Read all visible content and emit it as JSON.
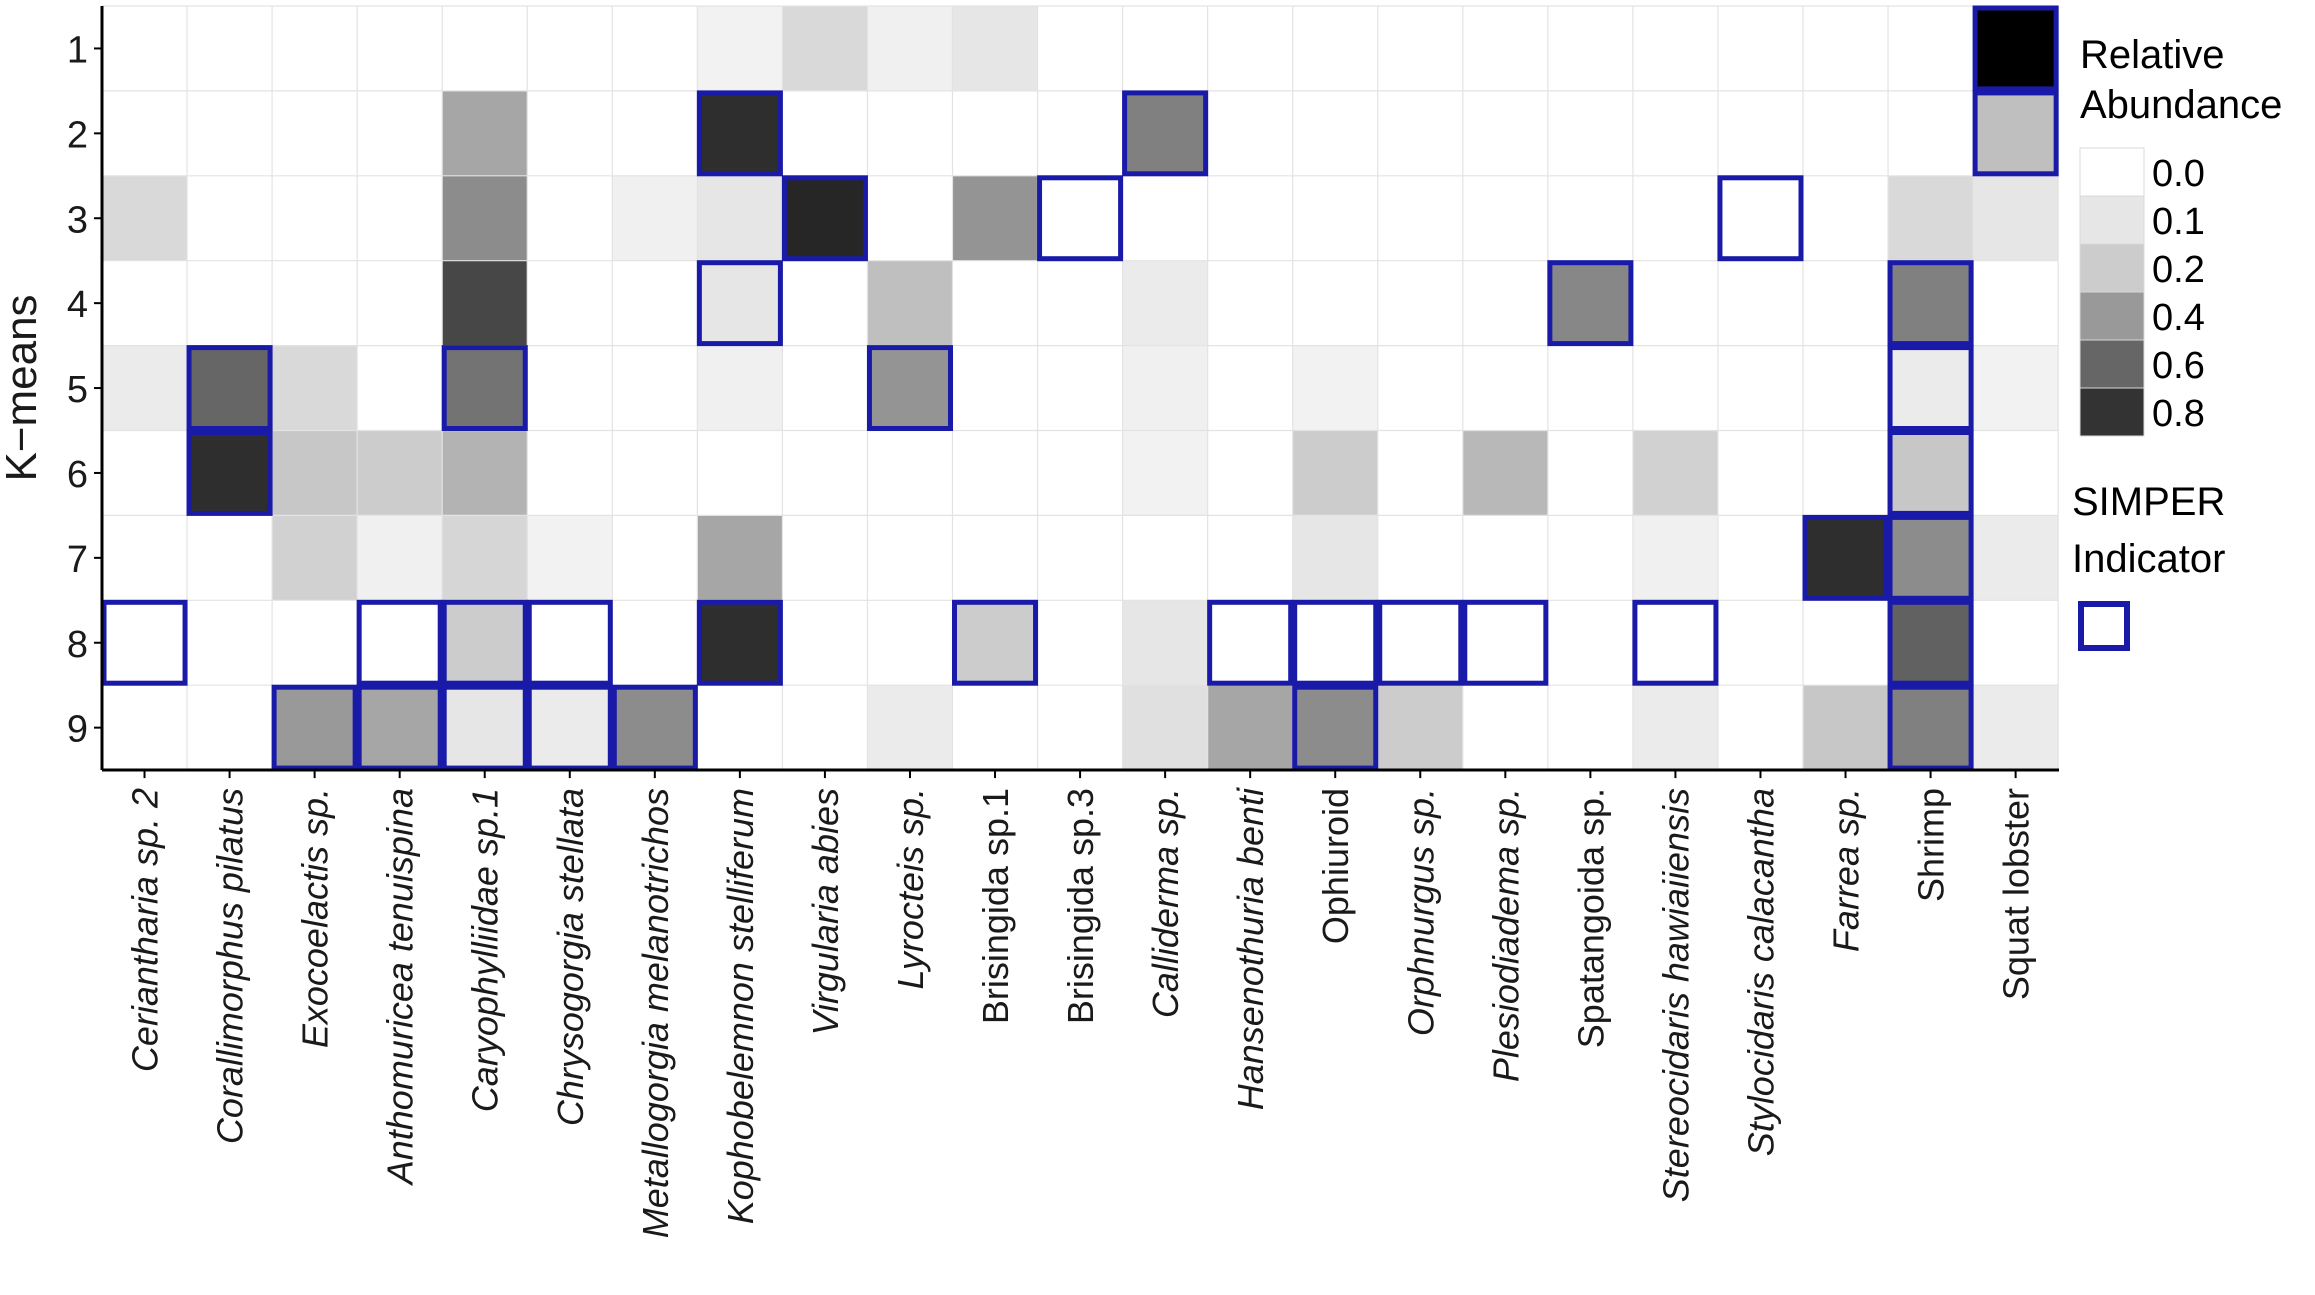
{
  "chart_data": {
    "type": "heatmap",
    "ylabel": "K−means",
    "rows": [
      "1",
      "2",
      "3",
      "4",
      "5",
      "6",
      "7",
      "8",
      "9"
    ],
    "columns": [
      {
        "name": "Ceriantharia sp. 2",
        "italic": true
      },
      {
        "name": "Corallimorphus pilatus",
        "italic": true
      },
      {
        "name": "Exocoelactis sp.",
        "italic": true
      },
      {
        "name": "Anthomuricea tenuispina",
        "italic": true
      },
      {
        "name": "Caryophylliidae sp.1",
        "italic": true
      },
      {
        "name": "Chrysogorgia stellata",
        "italic": true
      },
      {
        "name": "Metallogorgia melanotrichos",
        "italic": true
      },
      {
        "name": "Kophobelemnon stelliferum",
        "italic": true
      },
      {
        "name": "Virgularia abies",
        "italic": true
      },
      {
        "name": "Lyrocteis sp.",
        "italic": true
      },
      {
        "name": "Brisingida sp.1",
        "italic": false
      },
      {
        "name": "Brisingida sp.3",
        "italic": false
      },
      {
        "name": "Calliderma sp.",
        "italic": true
      },
      {
        "name": "Hansenothuria benti",
        "italic": true
      },
      {
        "name": "Ophiuroid",
        "italic": false
      },
      {
        "name": "Orphnurgus sp.",
        "italic": true
      },
      {
        "name": "Plesiodiadema sp.",
        "italic": true
      },
      {
        "name": "Spatangoida sp.",
        "italic": false
      },
      {
        "name": "Stereocidaris hawiaiiensis",
        "italic": true
      },
      {
        "name": "Stylocidaris calacantha",
        "italic": true
      },
      {
        "name": "Farrea sp.",
        "italic": true
      },
      {
        "name": "Shrimp",
        "italic": false
      },
      {
        "name": "Squat lobster",
        "italic": false
      }
    ],
    "values": [
      [
        0,
        0,
        0,
        0,
        0,
        0,
        0,
        0.05,
        0.15,
        0.06,
        0.1,
        0,
        0,
        0,
        0,
        0,
        0,
        0,
        0,
        0,
        0,
        0,
        1.0
      ],
      [
        0,
        0,
        0,
        0,
        0.35,
        0,
        0,
        0.82,
        0,
        0,
        0,
        0,
        0.5,
        0,
        0,
        0,
        0,
        0,
        0,
        0,
        0,
        0,
        0.25
      ],
      [
        0.15,
        0,
        0,
        0,
        0.45,
        0,
        0.06,
        0.1,
        0.85,
        0,
        0.42,
        0,
        0,
        0,
        0,
        0,
        0,
        0,
        0,
        0,
        0,
        0.15,
        0.1
      ],
      [
        0,
        0,
        0,
        0,
        0.72,
        0,
        0,
        0.1,
        0,
        0.25,
        0,
        0,
        0.08,
        0,
        0,
        0,
        0,
        0.47,
        0,
        0,
        0,
        0.5,
        0
      ],
      [
        0.08,
        0.6,
        0.15,
        0,
        0.55,
        0,
        0,
        0.06,
        0,
        0.42,
        0,
        0,
        0.06,
        0,
        0.05,
        0,
        0,
        0,
        0,
        0,
        0,
        0.08,
        0.05
      ],
      [
        0,
        0.82,
        0.22,
        0.2,
        0.3,
        0,
        0,
        0,
        0,
        0,
        0,
        0,
        0.05,
        0,
        0.2,
        0,
        0.28,
        0,
        0.18,
        0,
        0,
        0.22,
        0
      ],
      [
        0,
        0,
        0.18,
        0.06,
        0.16,
        0.05,
        0,
        0.35,
        0,
        0,
        0,
        0,
        0,
        0,
        0.1,
        0,
        0,
        0,
        0.06,
        0,
        0.82,
        0.45,
        0.08
      ],
      [
        0,
        0,
        0,
        0,
        0.2,
        0,
        0,
        0.82,
        0,
        0,
        0.2,
        0,
        0.1,
        0,
        0,
        0,
        0,
        0,
        0,
        0,
        0,
        0.62,
        0
      ],
      [
        0,
        0,
        0.4,
        0.35,
        0.1,
        0.08,
        0.45,
        0,
        0,
        0.08,
        0,
        0,
        0.12,
        0.35,
        0.45,
        0.2,
        0,
        0,
        0.08,
        0,
        0.22,
        0.5,
        0.08
      ]
    ],
    "simper": [
      [
        1,
        23
      ],
      [
        2,
        8
      ],
      [
        2,
        13
      ],
      [
        2,
        23
      ],
      [
        3,
        9
      ],
      [
        3,
        12
      ],
      [
        3,
        20
      ],
      [
        4,
        8
      ],
      [
        4,
        18
      ],
      [
        4,
        22
      ],
      [
        5,
        2
      ],
      [
        5,
        5
      ],
      [
        5,
        10
      ],
      [
        5,
        22
      ],
      [
        6,
        2
      ],
      [
        6,
        22
      ],
      [
        7,
        21
      ],
      [
        7,
        22
      ],
      [
        8,
        1
      ],
      [
        8,
        4
      ],
      [
        8,
        5
      ],
      [
        8,
        6
      ],
      [
        8,
        8
      ],
      [
        8,
        11
      ],
      [
        8,
        14
      ],
      [
        8,
        15
      ],
      [
        8,
        16
      ],
      [
        8,
        17
      ],
      [
        8,
        19
      ],
      [
        8,
        22
      ],
      [
        9,
        3
      ],
      [
        9,
        4
      ],
      [
        9,
        5
      ],
      [
        9,
        6
      ],
      [
        9,
        7
      ],
      [
        9,
        15
      ],
      [
        9,
        22
      ]
    ],
    "legend": {
      "title_line1": "Relative",
      "title_line2": "Abundance",
      "entries": [
        "0.0",
        "0.1",
        "0.2",
        "0.4",
        "0.6",
        "0.8"
      ],
      "entry_values": [
        0,
        0.1,
        0.2,
        0.4,
        0.6,
        0.8
      ],
      "indicator_line1": "SIMPER",
      "indicator_line2": "Indicator",
      "position": "right"
    },
    "value_range": [
      0,
      1
    ],
    "grid": true
  },
  "colors": {
    "low": "#ffffff",
    "high": "#000000",
    "indicator_border": "#1a1aa8",
    "grid": "#e3e3e3",
    "axis": "#000000"
  }
}
